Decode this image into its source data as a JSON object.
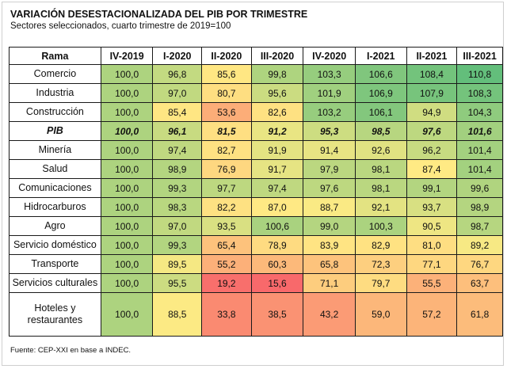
{
  "title": "VARIACIÓN DESESTACIONALIZADA DEL PIB POR TRIMESTRE",
  "subtitle": "Sectores seleccionados, cuarto trimestre de 2019=100",
  "source": "Fuente: CEP-XXI en base a INDEC.",
  "chart_data": {
    "type": "heatmap",
    "title": "VARIACIÓN DESESTACIONALIZADA DEL PIB POR TRIMESTRE",
    "subtitle": "Sectores seleccionados, cuarto trimestre de 2019=100",
    "row_header": "Rama",
    "columns": [
      "IV-2019",
      "I-2020",
      "II-2020",
      "III-2020",
      "IV-2020",
      "I-2021",
      "II-2021",
      "III-2021"
    ],
    "rows": [
      {
        "name": "Comercio",
        "values": [
          "100,0",
          "96,8",
          "85,6",
          "99,8",
          "103,3",
          "106,6",
          "108,4",
          "110,8"
        ]
      },
      {
        "name": "Industria",
        "values": [
          "100,0",
          "97,0",
          "80,7",
          "95,6",
          "101,9",
          "106,9",
          "107,9",
          "108,3"
        ]
      },
      {
        "name": "Construcción",
        "values": [
          "100,0",
          "85,4",
          "53,6",
          "82,6",
          "103,2",
          "106,1",
          "94,9",
          "104,3"
        ]
      },
      {
        "name": "PIB",
        "values": [
          "100,0",
          "96,1",
          "81,5",
          "91,2",
          "95,3",
          "98,5",
          "97,6",
          "101,6"
        ]
      },
      {
        "name": "Minería",
        "values": [
          "100,0",
          "97,4",
          "82,7",
          "91,9",
          "91,4",
          "92,6",
          "96,2",
          "101,4"
        ]
      },
      {
        "name": "Salud",
        "values": [
          "100,0",
          "98,9",
          "76,9",
          "91,7",
          "97,9",
          "98,1",
          "87,4",
          "101,4"
        ]
      },
      {
        "name": "Comunicaciones",
        "values": [
          "100,0",
          "99,3",
          "97,7",
          "97,4",
          "97,6",
          "98,1",
          "99,1",
          "99,6"
        ]
      },
      {
        "name": "Hidrocarburos",
        "values": [
          "100,0",
          "98,3",
          "82,2",
          "87,0",
          "88,7",
          "92,1",
          "93,7",
          "98,9"
        ]
      },
      {
        "name": "Agro",
        "values": [
          "100,0",
          "97,0",
          "93,5",
          "100,6",
          "99,0",
          "100,3",
          "90,5",
          "98,7"
        ]
      },
      {
        "name": "Servicio doméstico",
        "values": [
          "100,0",
          "99,3",
          "65,4",
          "78,9",
          "83,9",
          "82,9",
          "81,0",
          "89,2"
        ]
      },
      {
        "name": "Transporte",
        "values": [
          "100,0",
          "89,5",
          "55,2",
          "60,3",
          "65,8",
          "72,3",
          "77,1",
          "76,7"
        ]
      },
      {
        "name": "Servicios culturales",
        "values": [
          "100,0",
          "95,5",
          "19,2",
          "15,6",
          "71,1",
          "79,7",
          "55,5",
          "63,7"
        ]
      },
      {
        "name": "Hoteles y restaurantes",
        "values": [
          "100,0",
          "88,5",
          "33,8",
          "38,5",
          "43,2",
          "59,0",
          "57,2",
          "61,8"
        ]
      }
    ],
    "highlight_row": "PIB",
    "color_scale": {
      "low": "#f8696b",
      "mid": "#ffeb84",
      "high": "#63be7b"
    }
  }
}
